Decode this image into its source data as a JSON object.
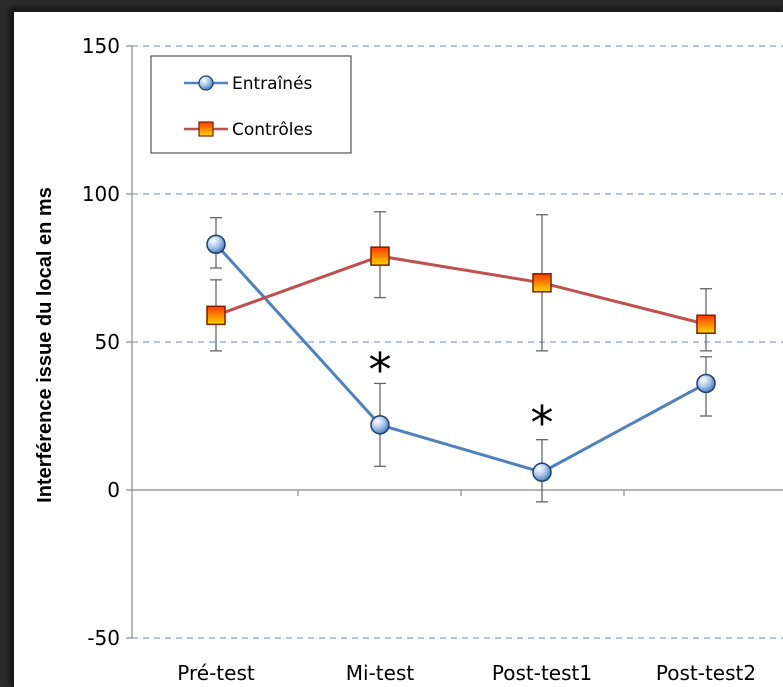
{
  "chart_data": {
    "type": "line",
    "title": "",
    "xlabel": "",
    "ylabel": "Interférence issue du local en ms",
    "categories": [
      "Pré-test",
      "Mi-test",
      "Post-test1",
      "Post-test2"
    ],
    "ylim": [
      -50,
      150
    ],
    "yticks": [
      150,
      100,
      50,
      0,
      -50
    ],
    "grid": true,
    "legend_position": "top-left",
    "series": [
      {
        "name": "Entraînés",
        "color": "#4f81bd",
        "marker": "circle",
        "values": [
          83,
          22,
          6,
          36
        ],
        "error": [
          [
            75,
            92
          ],
          [
            8,
            36
          ],
          [
            -4,
            17
          ],
          [
            25,
            45
          ]
        ]
      },
      {
        "name": "Contrôles",
        "color": "#c0504d",
        "marker": "square",
        "values": [
          59,
          79,
          70,
          56
        ],
        "error": [
          [
            47,
            71
          ],
          [
            65,
            94
          ],
          [
            47,
            93
          ],
          [
            47,
            68
          ]
        ]
      }
    ],
    "annotations": [
      {
        "text": "*",
        "category": "Mi-test",
        "y": 44
      },
      {
        "text": "*",
        "category": "Post-test1",
        "y": 26
      }
    ]
  }
}
